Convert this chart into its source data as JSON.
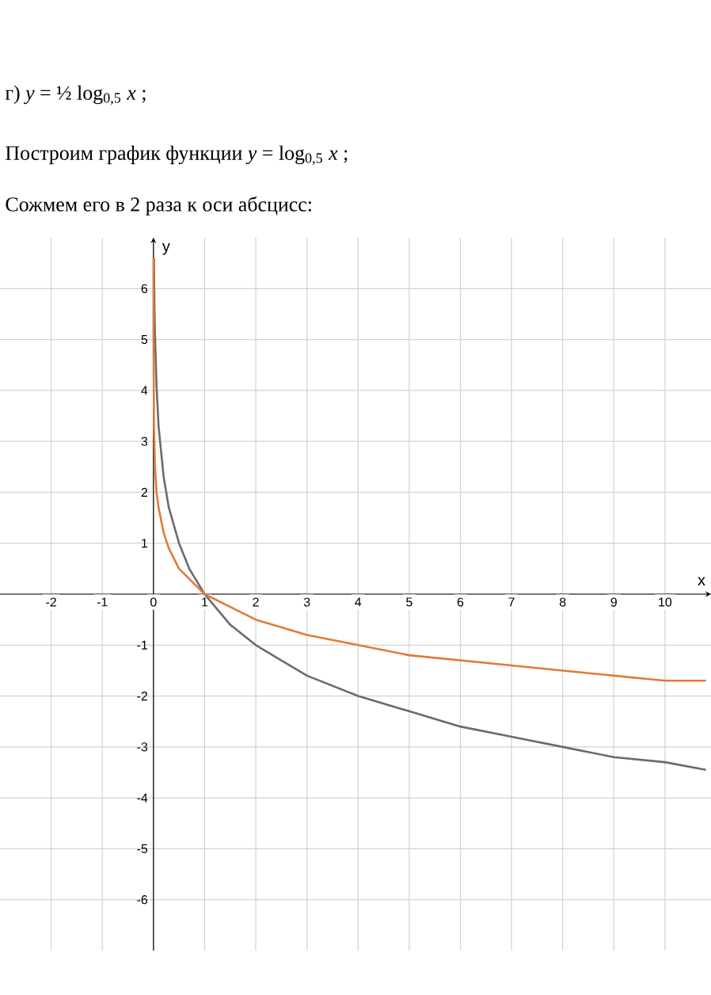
{
  "chart_data": {
    "type": "line",
    "annotations": [
      "г) *y* = ½ log$_{0,5}$ *x* ;",
      "Построим график функции *y* = log$_{0,5}$ *x* ;",
      "Сожмем его в 2 раза к оси абсцисс:"
    ],
    "xlabel": "x",
    "ylabel": "y",
    "xlim": [
      -3,
      10.9
    ],
    "ylim": [
      -7,
      7
    ],
    "xticks": [
      -2,
      -1,
      0,
      1,
      2,
      3,
      4,
      5,
      6,
      7,
      8,
      9,
      10
    ],
    "yticks": [
      -6,
      -5,
      -4,
      -3,
      -2,
      -1,
      {
        "value": 0,
        "label": null
      },
      1,
      2,
      3,
      4,
      5,
      6
    ],
    "grid": true,
    "series": [
      {
        "color": "#6b6b6b",
        "x": [
          0.01,
          0.02,
          0.03,
          0.06,
          0.1,
          0.2,
          0.3,
          0.5,
          0.7,
          1,
          1.5,
          2,
          3,
          4,
          5,
          6,
          7,
          8,
          9,
          10,
          10.8
        ],
        "values": [
          6.6,
          5.6,
          5.1,
          4.1,
          3.3,
          2.3,
          1.7,
          1,
          0.5,
          0,
          -0.6,
          -1,
          -1.6,
          -2,
          -2.3,
          -2.6,
          -2.8,
          -3,
          -3.2,
          -3.3,
          -3.45
        ]
      },
      {
        "color": "#e07b39",
        "x": [
          0.0001,
          0.001,
          0.01,
          0.03,
          0.06,
          0.1,
          0.2,
          0.3,
          0.5,
          0.7,
          1,
          2,
          3,
          4,
          5,
          6,
          7,
          8,
          9,
          10,
          10.8
        ],
        "values": [
          6.6,
          5,
          3.3,
          2.5,
          2,
          1.7,
          1.2,
          0.9,
          0.5,
          0.3,
          0,
          -0.5,
          -0.8,
          -1,
          -1.2,
          -1.3,
          -1.4,
          -1.5,
          -1.6,
          -1.7,
          -1.7
        ]
      }
    ]
  }
}
